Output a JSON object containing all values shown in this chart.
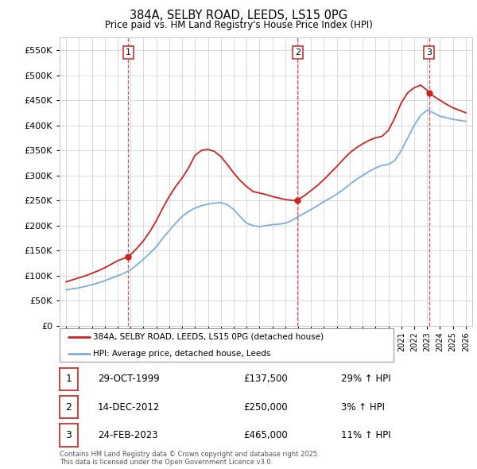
{
  "title": "384A, SELBY ROAD, LEEDS, LS15 0PG",
  "subtitle": "Price paid vs. HM Land Registry's House Price Index (HPI)",
  "hpi_label": "HPI: Average price, detached house, Leeds",
  "property_label": "384A, SELBY ROAD, LEEDS, LS15 0PG (detached house)",
  "sale_points": [
    {
      "date_num": 1999.83,
      "price": 137500,
      "label": "1",
      "date_str": "29-OCT-1999",
      "pct": "29% ↑ HPI"
    },
    {
      "date_num": 2012.95,
      "price": 250000,
      "label": "2",
      "date_str": "14-DEC-2012",
      "pct": "3% ↑ HPI"
    },
    {
      "date_num": 2023.15,
      "price": 465000,
      "label": "3",
      "date_str": "24-FEB-2023",
      "pct": "11% ↑ HPI"
    }
  ],
  "xlim": [
    1994.5,
    2026.5
  ],
  "ylim": [
    0,
    575000
  ],
  "yticks": [
    0,
    50000,
    100000,
    150000,
    200000,
    250000,
    300000,
    350000,
    400000,
    450000,
    500000,
    550000
  ],
  "xticks": [
    1995,
    1996,
    1997,
    1998,
    1999,
    2000,
    2001,
    2002,
    2003,
    2004,
    2005,
    2006,
    2007,
    2008,
    2009,
    2010,
    2011,
    2012,
    2013,
    2014,
    2015,
    2016,
    2017,
    2018,
    2019,
    2020,
    2021,
    2022,
    2023,
    2024,
    2025,
    2026
  ],
  "grid_color": "#cccccc",
  "hpi_color": "#7aade0",
  "property_color": "#cc2222",
  "bg_color": "#ffffff",
  "footnote": "Contains HM Land Registry data © Crown copyright and database right 2025.\nThis data is licensed under the Open Government Licence v3.0.",
  "hpi_data_x": [
    1995,
    1995.5,
    1996,
    1996.5,
    1997,
    1997.5,
    1998,
    1998.5,
    1999,
    1999.5,
    2000,
    2000.5,
    2001,
    2001.5,
    2002,
    2002.5,
    2003,
    2003.5,
    2004,
    2004.5,
    2005,
    2005.5,
    2006,
    2006.5,
    2007,
    2007.5,
    2008,
    2008.5,
    2009,
    2009.5,
    2010,
    2010.5,
    2011,
    2011.5,
    2012,
    2012.5,
    2013,
    2013.5,
    2014,
    2014.5,
    2015,
    2015.5,
    2016,
    2016.5,
    2017,
    2017.5,
    2018,
    2018.5,
    2019,
    2019.5,
    2020,
    2020.5,
    2021,
    2021.5,
    2022,
    2022.5,
    2023,
    2023.5,
    2024,
    2024.5,
    2025,
    2025.5,
    2026
  ],
  "hpi_data_y": [
    72000,
    74000,
    76000,
    79000,
    82000,
    86000,
    90000,
    95000,
    100000,
    105000,
    112000,
    122000,
    133000,
    145000,
    158000,
    175000,
    190000,
    205000,
    218000,
    228000,
    235000,
    240000,
    243000,
    245000,
    246000,
    242000,
    232000,
    218000,
    205000,
    200000,
    198000,
    200000,
    202000,
    203000,
    205000,
    210000,
    218000,
    225000,
    232000,
    240000,
    248000,
    255000,
    263000,
    272000,
    282000,
    292000,
    300000,
    308000,
    315000,
    320000,
    322000,
    330000,
    350000,
    375000,
    400000,
    420000,
    430000,
    425000,
    418000,
    415000,
    412000,
    410000,
    408000
  ],
  "prop_data_x": [
    1995,
    1995.5,
    1996,
    1996.5,
    1997,
    1997.5,
    1998,
    1998.5,
    1999,
    1999.5,
    1999.83,
    2000,
    2000.5,
    2001,
    2001.5,
    2002,
    2002.5,
    2003,
    2003.5,
    2004,
    2004.5,
    2005,
    2005.5,
    2006,
    2006.5,
    2007,
    2007.5,
    2008,
    2008.5,
    2009,
    2009.5,
    2010,
    2010.5,
    2011,
    2011.5,
    2012,
    2012.5,
    2012.95,
    2013,
    2013.5,
    2014,
    2014.5,
    2015,
    2015.5,
    2016,
    2016.5,
    2017,
    2017.5,
    2018,
    2018.5,
    2019,
    2019.5,
    2020,
    2020.5,
    2021,
    2021.5,
    2022,
    2022.5,
    2023,
    2023.15,
    2023.5,
    2024,
    2024.5,
    2025,
    2025.5,
    2026
  ],
  "prop_data_y": [
    88000,
    92000,
    96000,
    100000,
    105000,
    110000,
    116000,
    123000,
    130000,
    135000,
    137500,
    142000,
    155000,
    170000,
    188000,
    210000,
    235000,
    258000,
    278000,
    295000,
    315000,
    340000,
    350000,
    352000,
    348000,
    338000,
    322000,
    305000,
    290000,
    278000,
    268000,
    265000,
    262000,
    258000,
    255000,
    252000,
    250500,
    250000,
    252000,
    260000,
    270000,
    280000,
    292000,
    305000,
    318000,
    332000,
    345000,
    355000,
    363000,
    370000,
    375000,
    378000,
    390000,
    415000,
    445000,
    465000,
    475000,
    480000,
    470000,
    465000,
    458000,
    450000,
    442000,
    435000,
    430000,
    425000
  ]
}
